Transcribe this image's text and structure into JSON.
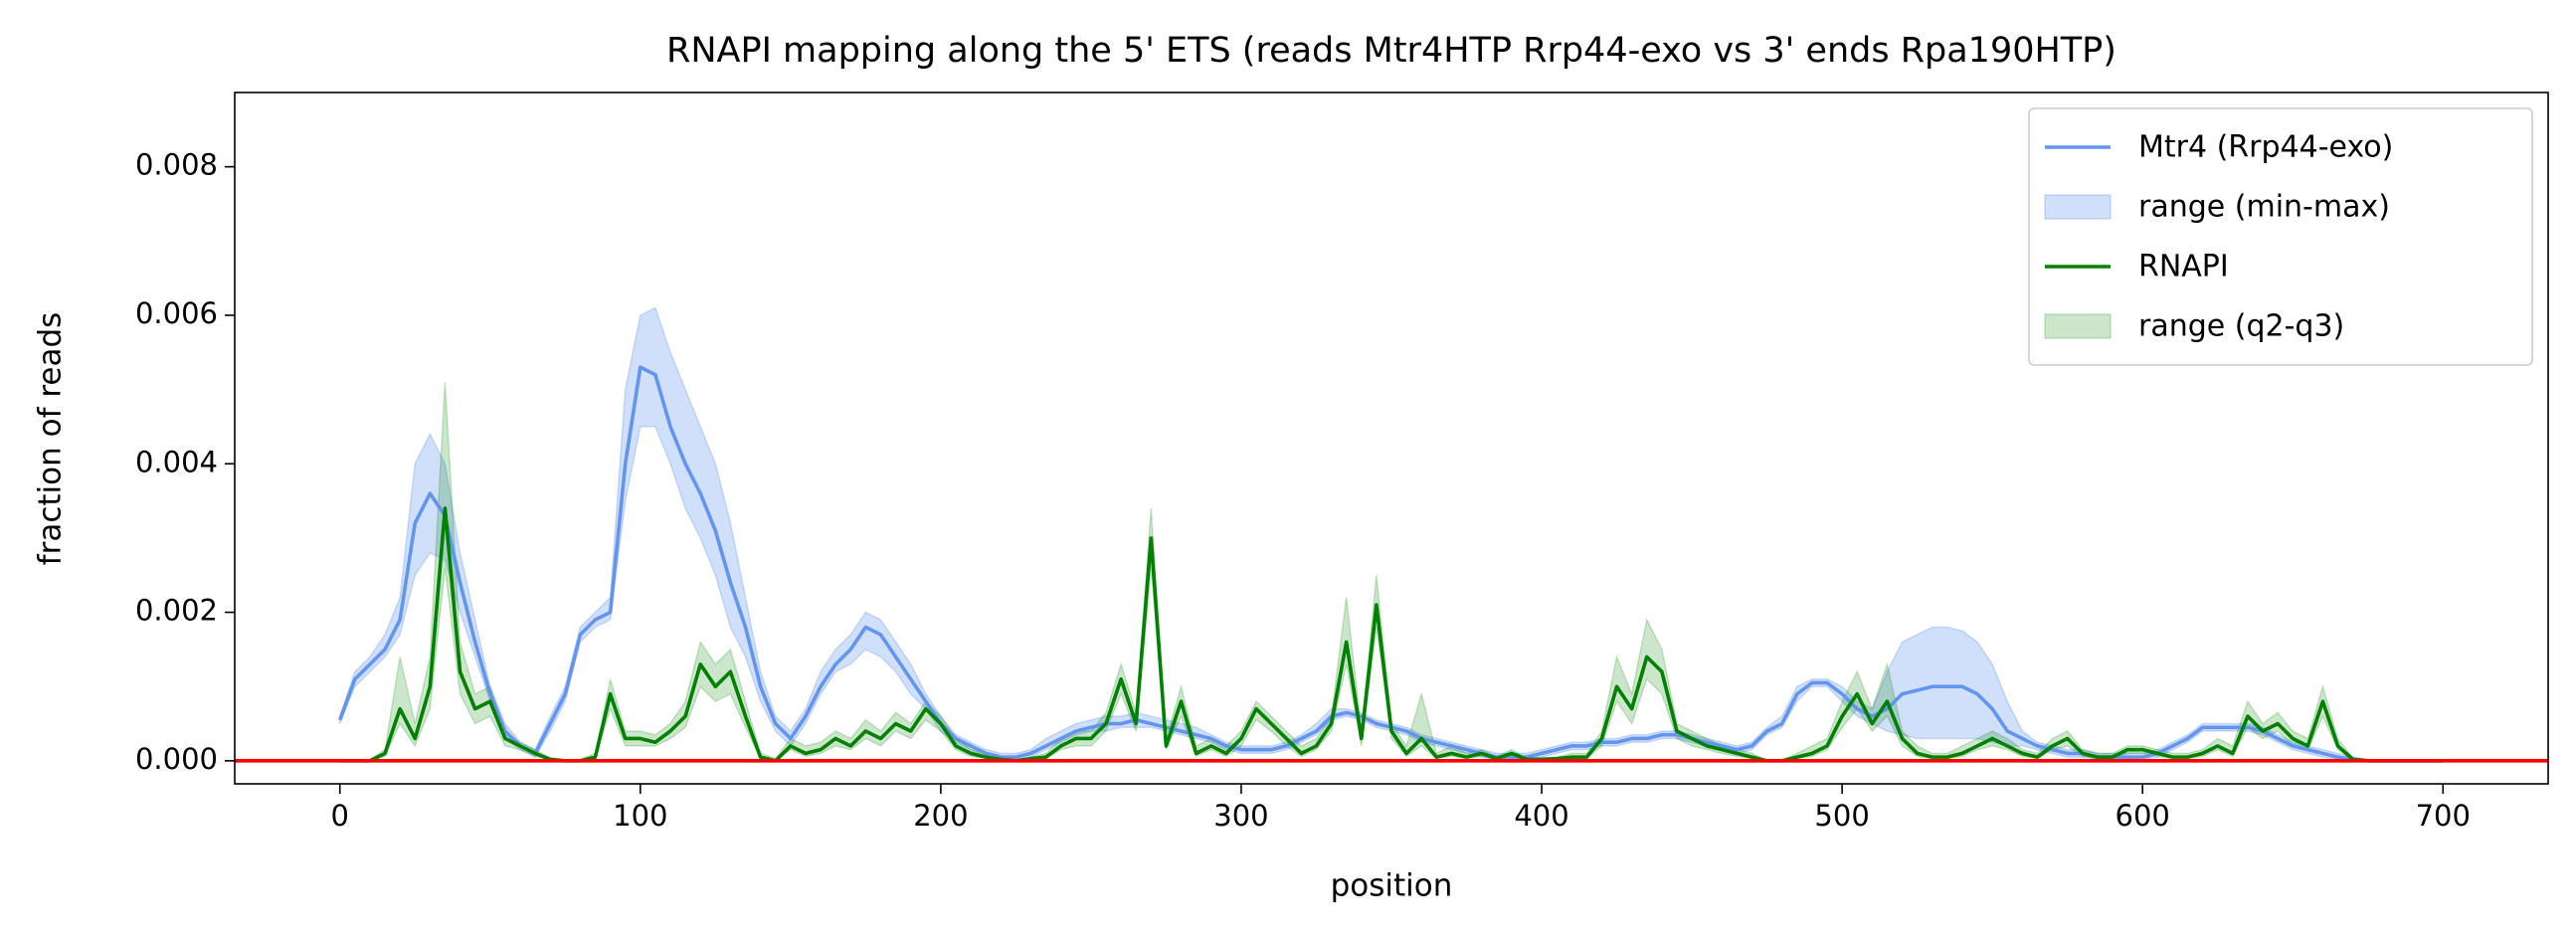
{
  "chart_data": {
    "type": "line",
    "title": "RNAPI mapping along the 5' ETS (reads Mtr4HTP Rrp44-exo vs 3' ends Rpa190HTP)",
    "xlabel": "position",
    "ylabel": "fraction of reads",
    "xlim": [
      -35,
      735
    ],
    "ylim": [
      -0.00031,
      0.009
    ],
    "xticks": [
      0,
      100,
      200,
      300,
      400,
      500,
      600,
      700
    ],
    "yticks": [
      {
        "value": 0,
        "label": "0.000"
      },
      {
        "value": 0.002,
        "label": "0.002"
      },
      {
        "value": 0.004,
        "label": "0.004"
      },
      {
        "value": 0.006,
        "label": "0.006"
      },
      {
        "value": 0.008,
        "label": "0.008"
      }
    ],
    "grid": false,
    "legend": "upper right",
    "hlines": [
      {
        "y": 0,
        "color": "#ff0000"
      }
    ],
    "x": [
      0,
      5,
      10,
      15,
      20,
      25,
      30,
      35,
      40,
      45,
      50,
      55,
      60,
      65,
      70,
      75,
      80,
      85,
      90,
      95,
      100,
      105,
      110,
      115,
      120,
      125,
      130,
      135,
      140,
      145,
      150,
      155,
      160,
      165,
      170,
      175,
      180,
      185,
      190,
      195,
      200,
      205,
      210,
      215,
      220,
      225,
      230,
      235,
      240,
      245,
      250,
      255,
      260,
      265,
      270,
      275,
      280,
      285,
      290,
      295,
      300,
      305,
      310,
      315,
      320,
      325,
      330,
      335,
      340,
      345,
      350,
      355,
      360,
      365,
      370,
      375,
      380,
      385,
      390,
      395,
      400,
      405,
      410,
      415,
      420,
      425,
      430,
      435,
      440,
      445,
      450,
      455,
      460,
      465,
      470,
      475,
      480,
      485,
      490,
      495,
      500,
      505,
      510,
      515,
      520,
      525,
      530,
      535,
      540,
      545,
      550,
      555,
      560,
      565,
      570,
      575,
      580,
      585,
      590,
      595,
      600,
      605,
      610,
      615,
      620,
      625,
      630,
      635,
      640,
      645,
      650,
      655,
      660,
      665,
      670,
      675,
      680,
      685,
      690,
      695,
      700
    ],
    "series": [
      {
        "name": "Mtr4 (Rrp44-exo)",
        "color": "#6495ed",
        "values": [
          0.00055,
          0.0011,
          0.0013,
          0.0015,
          0.0019,
          0.0032,
          0.0036,
          0.0033,
          0.0024,
          0.0016,
          0.0009,
          0.0004,
          0.0002,
          0.0001,
          0.0005,
          0.0009,
          0.0017,
          0.0019,
          0.002,
          0.004,
          0.0053,
          0.0052,
          0.0045,
          0.004,
          0.0036,
          0.0031,
          0.0024,
          0.0018,
          0.001,
          0.0005,
          0.0003,
          0.0006,
          0.001,
          0.0013,
          0.0015,
          0.0018,
          0.0017,
          0.0014,
          0.0011,
          0.0008,
          0.0005,
          0.0003,
          0.0002,
          0.0001,
          5e-05,
          5e-05,
          0.0001,
          0.0002,
          0.0003,
          0.0004,
          0.00045,
          0.0005,
          0.0005,
          0.00055,
          0.0005,
          0.00045,
          0.0004,
          0.00035,
          0.0003,
          0.0002,
          0.00015,
          0.00015,
          0.00015,
          0.0002,
          0.0003,
          0.0004,
          0.0006,
          0.00065,
          0.0006,
          0.0005,
          0.00045,
          0.0004,
          0.0003,
          0.00025,
          0.0002,
          0.00015,
          0.0001,
          5e-05,
          5e-05,
          5e-05,
          0.0001,
          0.00015,
          0.0002,
          0.0002,
          0.00025,
          0.00025,
          0.0003,
          0.0003,
          0.00035,
          0.00035,
          0.0003,
          0.00025,
          0.0002,
          0.00015,
          0.0002,
          0.0004,
          0.0005,
          0.0009,
          0.00105,
          0.00105,
          0.0009,
          0.0007,
          0.0006,
          0.0007,
          0.0009,
          0.00095,
          0.001,
          0.001,
          0.001,
          0.0009,
          0.0007,
          0.0004,
          0.0003,
          0.0002,
          0.00015,
          0.0001,
          0.0001,
          5e-05,
          5e-05,
          5e-05,
          5e-05,
          0.0001,
          0.0002,
          0.0003,
          0.00045,
          0.00045,
          0.00045,
          0.00045,
          0.0004,
          0.0003,
          0.0002,
          0.00015,
          0.0001,
          5e-05,
          2e-05,
          0,
          0,
          0,
          0,
          0,
          0
        ],
        "band": {
          "name": "range (min-max)",
          "opacity": 0.3,
          "upper": [
            0.0006,
            0.0012,
            0.0014,
            0.0017,
            0.0022,
            0.004,
            0.0044,
            0.004,
            0.0028,
            0.0019,
            0.001,
            0.0005,
            0.00025,
            0.00015,
            0.0006,
            0.001,
            0.0018,
            0.002,
            0.0022,
            0.005,
            0.006,
            0.0061,
            0.0055,
            0.005,
            0.0045,
            0.004,
            0.0032,
            0.0022,
            0.0012,
            0.0006,
            0.0004,
            0.0007,
            0.0012,
            0.0015,
            0.0017,
            0.002,
            0.0019,
            0.0016,
            0.0013,
            0.0009,
            0.0006,
            0.00035,
            0.00025,
            0.00015,
            0.0001,
            0.0001,
            0.00015,
            0.0003,
            0.0004,
            0.0005,
            0.00055,
            0.0006,
            0.0006,
            0.00065,
            0.0006,
            0.00055,
            0.0005,
            0.00045,
            0.00035,
            0.00025,
            0.0002,
            0.0002,
            0.0002,
            0.00025,
            0.00035,
            0.0005,
            0.0007,
            0.0007,
            0.00065,
            0.00055,
            0.0005,
            0.00045,
            0.00035,
            0.0003,
            0.00025,
            0.0002,
            0.00015,
            0.0001,
            0.0001,
            0.0001,
            0.00015,
            0.0002,
            0.00025,
            0.00025,
            0.0003,
            0.0003,
            0.00035,
            0.00035,
            0.0004,
            0.0004,
            0.00035,
            0.0003,
            0.00025,
            0.0002,
            0.00025,
            0.00045,
            0.0006,
            0.001,
            0.0011,
            0.0011,
            0.001,
            0.0008,
            0.0007,
            0.0012,
            0.0016,
            0.0017,
            0.0018,
            0.0018,
            0.00175,
            0.0016,
            0.0013,
            0.0008,
            0.0004,
            0.00025,
            0.0002,
            0.00015,
            0.00015,
            0.0001,
            0.0001,
            0.0001,
            0.0001,
            0.00015,
            0.00025,
            0.00035,
            0.0005,
            0.0005,
            0.0005,
            0.0005,
            0.00045,
            0.00035,
            0.00025,
            0.0002,
            0.00015,
            0.0001,
            5e-05,
            2e-05,
            0,
            0,
            0,
            0,
            0
          ],
          "lower": [
            0.0005,
            0.001,
            0.0012,
            0.0014,
            0.0017,
            0.0025,
            0.0028,
            0.0027,
            0.002,
            0.0014,
            0.0008,
            0.0003,
            0.00015,
            5e-05,
            0.0004,
            0.0008,
            0.0016,
            0.0018,
            0.0019,
            0.0035,
            0.0045,
            0.0045,
            0.004,
            0.0034,
            0.003,
            0.0025,
            0.0018,
            0.0014,
            0.0008,
            0.0004,
            0.0002,
            0.0005,
            0.0009,
            0.0012,
            0.0013,
            0.0015,
            0.0014,
            0.0012,
            0.0009,
            0.0007,
            0.0004,
            0.00025,
            0.00015,
            5e-05,
            2e-05,
            2e-05,
            5e-05,
            0.00015,
            0.00025,
            0.00035,
            0.0004,
            0.0004,
            0.00045,
            0.00045,
            0.00045,
            0.0004,
            0.00035,
            0.0003,
            0.00025,
            0.00015,
            0.0001,
            0.0001,
            0.0001,
            0.00015,
            0.00025,
            0.00035,
            0.00055,
            0.0006,
            0.00055,
            0.00045,
            0.0004,
            0.00035,
            0.00025,
            0.0002,
            0.00015,
            0.0001,
            5e-05,
            2e-05,
            2e-05,
            2e-05,
            5e-05,
            0.0001,
            0.00015,
            0.00015,
            0.0002,
            0.0002,
            0.00025,
            0.00025,
            0.0003,
            0.0003,
            0.00025,
            0.0002,
            0.00015,
            0.0001,
            0.00015,
            0.00035,
            0.00045,
            0.0008,
            0.001,
            0.001,
            0.0008,
            0.0006,
            0.0005,
            0.0004,
            0.00035,
            0.0003,
            0.0003,
            0.0003,
            0.0003,
            0.0003,
            0.00025,
            0.0002,
            0.0002,
            0.00015,
            0.0001,
            5e-05,
            5e-05,
            2e-05,
            2e-05,
            2e-05,
            2e-05,
            5e-05,
            0.00015,
            0.00025,
            0.0004,
            0.0004,
            0.0004,
            0.0004,
            0.00035,
            0.00025,
            0.00015,
            0.0001,
            5e-05,
            2e-05,
            0,
            0,
            0,
            0,
            0,
            0,
            0
          ]
        }
      },
      {
        "name": "RNAPI",
        "color": "#008000",
        "values": [
          0,
          0,
          0,
          0.0001,
          0.0007,
          0.0003,
          0.001,
          0.0034,
          0.0012,
          0.0007,
          0.0008,
          0.0003,
          0.0002,
          0.0001,
          2e-05,
          0,
          0,
          5e-05,
          0.0009,
          0.0003,
          0.0003,
          0.00025,
          0.0004,
          0.0006,
          0.0013,
          0.001,
          0.0012,
          0.0006,
          5e-05,
          0,
          0.0002,
          0.0001,
          0.00015,
          0.0003,
          0.0002,
          0.0004,
          0.0003,
          0.0005,
          0.0004,
          0.0007,
          0.0005,
          0.0002,
          0.0001,
          5e-05,
          2e-05,
          0,
          3e-05,
          5e-05,
          0.0002,
          0.0003,
          0.0003,
          0.0005,
          0.0011,
          0.0005,
          0.003,
          0.0002,
          0.0008,
          0.0001,
          0.0002,
          0.0001,
          0.0003,
          0.0007,
          0.0005,
          0.0003,
          0.0001,
          0.0002,
          0.0005,
          0.0016,
          0.0003,
          0.0021,
          0.0004,
          0.0001,
          0.0003,
          5e-05,
          0.0001,
          5e-05,
          0.0001,
          3e-05,
          0.0001,
          2e-05,
          2e-05,
          3e-05,
          5e-05,
          5e-05,
          0.0003,
          0.001,
          0.0007,
          0.0014,
          0.0012,
          0.0004,
          0.0003,
          0.0002,
          0.00015,
          0.0001,
          5e-05,
          0,
          0,
          5e-05,
          0.0001,
          0.0002,
          0.0006,
          0.0009,
          0.0005,
          0.0008,
          0.0003,
          0.0001,
          5e-05,
          5e-05,
          0.0001,
          0.0002,
          0.0003,
          0.0002,
          0.0001,
          5e-05,
          0.0002,
          0.0003,
          0.0001,
          5e-05,
          5e-05,
          0.00015,
          0.00015,
          0.0001,
          5e-05,
          5e-05,
          0.0001,
          0.0002,
          0.0001,
          0.0006,
          0.0004,
          0.0005,
          0.0003,
          0.0002,
          0.0008,
          0.0002,
          2e-05,
          0,
          0,
          0,
          0,
          0,
          0
        ],
        "band": {
          "name": "range (q2-q3)",
          "opacity": 0.2,
          "upper": [
            0,
            0,
            2e-05,
            0.00015,
            0.0014,
            0.0005,
            0.0014,
            0.0051,
            0.0016,
            0.0009,
            0.001,
            0.0004,
            0.00025,
            0.00015,
            4e-05,
            1e-05,
            2e-05,
            0.0001,
            0.0011,
            0.0004,
            0.0004,
            0.00035,
            0.0005,
            0.0008,
            0.0016,
            0.0013,
            0.0015,
            0.0008,
            0.0001,
            3e-05,
            0.0003,
            0.0002,
            0.00025,
            0.0004,
            0.0003,
            0.00055,
            0.0004,
            0.00065,
            0.0005,
            0.0008,
            0.0006,
            0.0003,
            0.00015,
            0.0001,
            4e-05,
            1e-05,
            5e-05,
            0.0001,
            0.0003,
            0.0004,
            0.0004,
            0.00065,
            0.0013,
            0.00065,
            0.0034,
            0.0003,
            0.001,
            0.0002,
            0.0003,
            0.0002,
            0.0004,
            0.0008,
            0.0006,
            0.0004,
            0.0002,
            0.0003,
            0.0006,
            0.0022,
            0.0004,
            0.0025,
            0.0005,
            0.0002,
            0.0009,
            0.0001,
            0.0002,
            0.0001,
            0.00015,
            6e-05,
            0.00015,
            4e-05,
            4e-05,
            5e-05,
            0.0001,
            0.0001,
            0.0004,
            0.0014,
            0.0009,
            0.0019,
            0.0015,
            0.0005,
            0.0004,
            0.0003,
            0.0002,
            0.00015,
            0.0001,
            1e-05,
            1e-05,
            0.0001,
            0.0002,
            0.0003,
            0.0008,
            0.0012,
            0.0007,
            0.0013,
            0.0004,
            0.0002,
            0.0001,
            0.0001,
            0.0002,
            0.0003,
            0.0004,
            0.0003,
            0.00015,
            0.0001,
            0.0003,
            0.0004,
            0.00015,
            0.0001,
            0.0001,
            0.0002,
            0.0002,
            0.00015,
            0.0001,
            0.0001,
            0.00015,
            0.0003,
            0.0002,
            0.0008,
            0.0005,
            0.00065,
            0.0004,
            0.0003,
            0.001,
            0.0003,
            4e-05,
            1e-05,
            0,
            0,
            0,
            0,
            0
          ],
          "lower": [
            0,
            0,
            0,
            6e-05,
            0.0005,
            0.0002,
            0.0007,
            0.0026,
            0.0009,
            0.0005,
            0.0006,
            0.0002,
            0.00015,
            6e-05,
            1e-05,
            0,
            0,
            3e-05,
            0.0007,
            0.0002,
            0.0002,
            0.0002,
            0.0003,
            0.00045,
            0.001,
            0.0008,
            0.0009,
            0.00045,
            3e-05,
            0,
            0.00015,
            6e-05,
            0.0001,
            0.0002,
            0.00015,
            0.0003,
            0.0002,
            0.0004,
            0.0003,
            0.00055,
            0.0004,
            0.00015,
            6e-05,
            3e-05,
            1e-05,
            0,
            2e-05,
            3e-05,
            0.00015,
            0.0002,
            0.0002,
            0.0004,
            0.0009,
            0.0004,
            0.0026,
            0.00015,
            0.0006,
            6e-05,
            0.00015,
            6e-05,
            0.0002,
            0.00055,
            0.0004,
            0.0002,
            6e-05,
            0.00015,
            0.0004,
            0.0013,
            0.0002,
            0.0018,
            0.0003,
            6e-05,
            0.0002,
            3e-05,
            6e-05,
            3e-05,
            6e-05,
            2e-05,
            6e-05,
            1e-05,
            1e-05,
            2e-05,
            3e-05,
            3e-05,
            0.0002,
            0.0008,
            0.0005,
            0.0011,
            0.0009,
            0.0003,
            0.0002,
            0.00015,
            0.0001,
            6e-05,
            3e-05,
            0,
            0,
            3e-05,
            6e-05,
            0.00015,
            0.00045,
            0.0007,
            0.0004,
            0.0006,
            0.0002,
            6e-05,
            3e-05,
            3e-05,
            6e-05,
            0.00015,
            0.0002,
            0.00015,
            6e-05,
            3e-05,
            0.00015,
            0.0002,
            6e-05,
            3e-05,
            3e-05,
            0.0001,
            0.0001,
            6e-05,
            3e-05,
            3e-05,
            6e-05,
            0.00015,
            6e-05,
            0.00045,
            0.0003,
            0.0004,
            0.0002,
            0.00015,
            0.0006,
            0.00015,
            1e-05,
            0,
            0,
            0,
            0,
            0,
            0
          ]
        }
      }
    ]
  }
}
